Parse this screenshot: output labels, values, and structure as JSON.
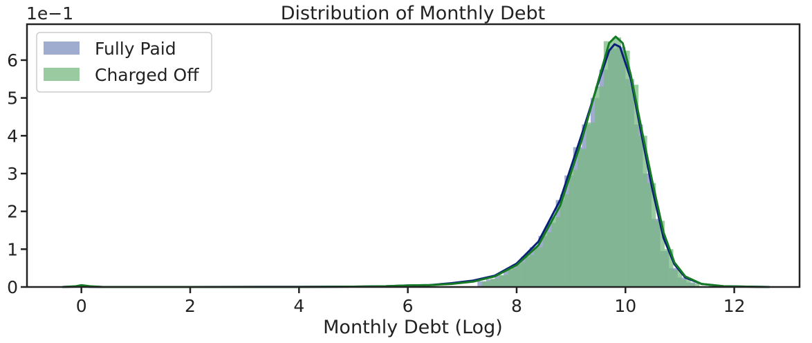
{
  "chart_data": {
    "type": "histogram",
    "title": "Distribution of Monthly Debt",
    "xlabel": "Monthly Debt (Log)",
    "ylabel": "",
    "y_scale_label": "1e−1",
    "xlim": [
      -1,
      13.2
    ],
    "ylim": [
      0,
      6.95
    ],
    "x_ticks": [
      0,
      2,
      4,
      6,
      8,
      10,
      12
    ],
    "y_ticks": [
      0,
      1,
      2,
      3,
      4,
      5,
      6
    ],
    "grid": false,
    "legend_position": "top-left",
    "bin_width": 0.16,
    "series": [
      {
        "name": "Fully Paid",
        "color": "#7f8fbf",
        "line_color": "#0a1f7a",
        "bins": [
          {
            "x": 7.36,
            "y": 0.15
          },
          {
            "x": 7.52,
            "y": 0.2
          },
          {
            "x": 7.68,
            "y": 0.3
          },
          {
            "x": 7.84,
            "y": 0.45
          },
          {
            "x": 8.0,
            "y": 0.6
          },
          {
            "x": 8.16,
            "y": 0.8
          },
          {
            "x": 8.32,
            "y": 1.05
          },
          {
            "x": 8.48,
            "y": 1.35
          },
          {
            "x": 8.64,
            "y": 1.7
          },
          {
            "x": 8.8,
            "y": 2.3
          },
          {
            "x": 8.96,
            "y": 2.95
          },
          {
            "x": 9.12,
            "y": 3.7
          },
          {
            "x": 9.28,
            "y": 4.3
          },
          {
            "x": 9.44,
            "y": 5.0
          },
          {
            "x": 9.6,
            "y": 5.75
          },
          {
            "x": 9.76,
            "y": 6.3
          },
          {
            "x": 9.92,
            "y": 6.35
          },
          {
            "x": 10.08,
            "y": 5.5
          },
          {
            "x": 10.24,
            "y": 4.3
          },
          {
            "x": 10.4,
            "y": 3.0
          },
          {
            "x": 10.56,
            "y": 1.8
          },
          {
            "x": 10.72,
            "y": 0.95
          },
          {
            "x": 10.88,
            "y": 0.5
          },
          {
            "x": 11.04,
            "y": 0.25
          },
          {
            "x": 11.2,
            "y": 0.12
          }
        ],
        "kde": [
          [
            -0.35,
            0
          ],
          [
            -0.1,
            0.01
          ],
          [
            0,
            0.02
          ],
          [
            0.15,
            0.005
          ],
          [
            0.4,
            0
          ],
          [
            2,
            0
          ],
          [
            4,
            0.005
          ],
          [
            5,
            0.01
          ],
          [
            5.6,
            0.02
          ],
          [
            6.0,
            0.04
          ],
          [
            6.4,
            0.05
          ],
          [
            6.8,
            0.1
          ],
          [
            7.2,
            0.17
          ],
          [
            7.6,
            0.3
          ],
          [
            8.0,
            0.62
          ],
          [
            8.4,
            1.2
          ],
          [
            8.8,
            2.3
          ],
          [
            9.2,
            4.05
          ],
          [
            9.5,
            5.4
          ],
          [
            9.7,
            6.25
          ],
          [
            9.8,
            6.42
          ],
          [
            9.9,
            6.35
          ],
          [
            10.1,
            5.5
          ],
          [
            10.3,
            4.0
          ],
          [
            10.5,
            2.55
          ],
          [
            10.7,
            1.3
          ],
          [
            10.9,
            0.6
          ],
          [
            11.1,
            0.25
          ],
          [
            11.4,
            0.08
          ],
          [
            11.8,
            0.02
          ],
          [
            12.4,
            0.005
          ],
          [
            12.65,
            0
          ]
        ]
      },
      {
        "name": "Charged Off",
        "color": "#78b87f",
        "line_color": "#157a24",
        "bins": [
          {
            "x": 7.44,
            "y": 0.15
          },
          {
            "x": 7.6,
            "y": 0.22
          },
          {
            "x": 7.76,
            "y": 0.32
          },
          {
            "x": 7.92,
            "y": 0.5
          },
          {
            "x": 8.08,
            "y": 0.65
          },
          {
            "x": 8.24,
            "y": 0.85
          },
          {
            "x": 8.4,
            "y": 1.05
          },
          {
            "x": 8.56,
            "y": 1.45
          },
          {
            "x": 8.72,
            "y": 1.85
          },
          {
            "x": 8.88,
            "y": 2.45
          },
          {
            "x": 9.04,
            "y": 3.1
          },
          {
            "x": 9.2,
            "y": 3.65
          },
          {
            "x": 9.36,
            "y": 4.35
          },
          {
            "x": 9.52,
            "y": 5.3
          },
          {
            "x": 9.68,
            "y": 6.5
          },
          {
            "x": 9.84,
            "y": 6.6
          },
          {
            "x": 10.0,
            "y": 6.25
          },
          {
            "x": 10.16,
            "y": 5.35
          },
          {
            "x": 10.32,
            "y": 4.0
          },
          {
            "x": 10.48,
            "y": 2.75
          },
          {
            "x": 10.64,
            "y": 1.75
          },
          {
            "x": 10.8,
            "y": 1.0
          },
          {
            "x": 10.96,
            "y": 0.45
          },
          {
            "x": 11.12,
            "y": 0.2
          },
          {
            "x": 11.28,
            "y": 0.1
          }
        ],
        "kde": [
          [
            -0.35,
            0
          ],
          [
            -0.1,
            0.02
          ],
          [
            0,
            0.05
          ],
          [
            0.15,
            0.02
          ],
          [
            0.4,
            0
          ],
          [
            2,
            0
          ],
          [
            4,
            0
          ],
          [
            5,
            0.01
          ],
          [
            5.6,
            0.02
          ],
          [
            6.0,
            0.04
          ],
          [
            6.4,
            0.05
          ],
          [
            6.8,
            0.08
          ],
          [
            7.2,
            0.14
          ],
          [
            7.6,
            0.28
          ],
          [
            8.0,
            0.58
          ],
          [
            8.4,
            1.1
          ],
          [
            8.8,
            2.15
          ],
          [
            9.2,
            3.9
          ],
          [
            9.5,
            5.45
          ],
          [
            9.7,
            6.45
          ],
          [
            9.82,
            6.62
          ],
          [
            9.95,
            6.45
          ],
          [
            10.1,
            5.6
          ],
          [
            10.3,
            4.15
          ],
          [
            10.5,
            2.75
          ],
          [
            10.7,
            1.45
          ],
          [
            10.9,
            0.65
          ],
          [
            11.1,
            0.28
          ],
          [
            11.4,
            0.08
          ],
          [
            11.8,
            0.02
          ],
          [
            12.4,
            0.005
          ],
          [
            12.65,
            0
          ]
        ]
      }
    ]
  }
}
